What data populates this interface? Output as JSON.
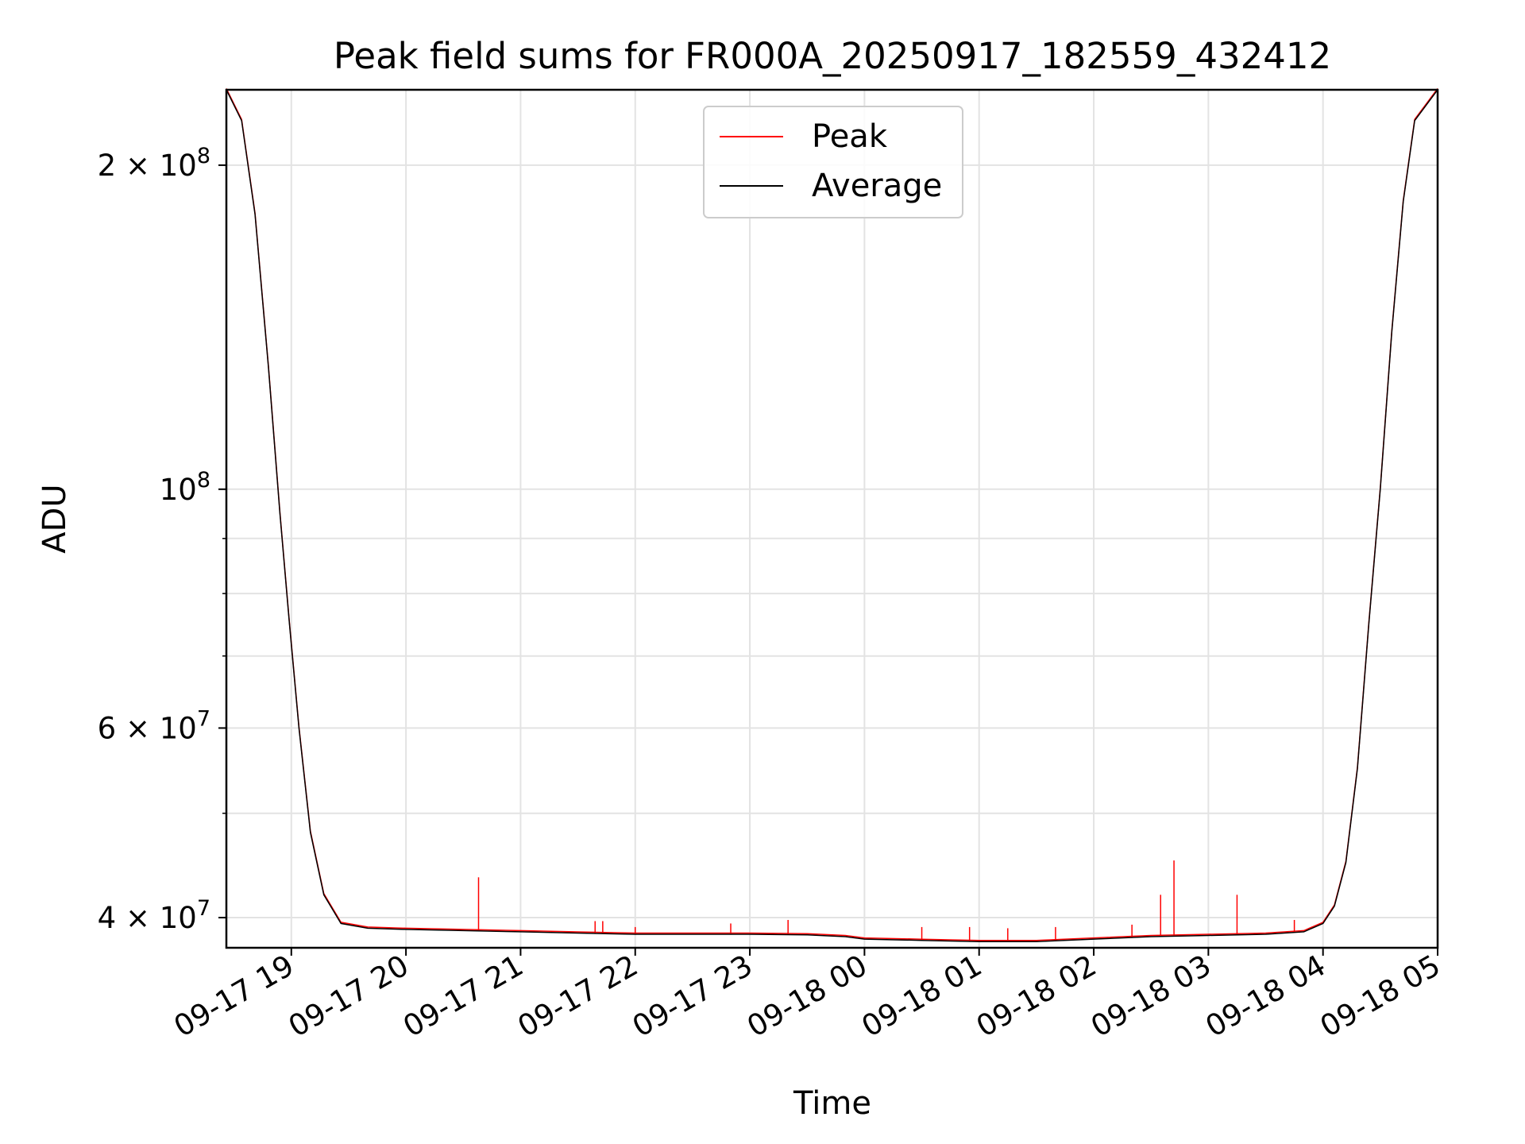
{
  "chart_data": {
    "type": "line",
    "title": "Peak field sums for FR000A_20250917_182559_432412",
    "xlabel": "Time",
    "ylabel": "ADU",
    "y_scale": "log",
    "grid": true,
    "legend_position": "upper center",
    "xlim": [
      "2025-09-17 18:26",
      "2025-09-18 05:00"
    ],
    "ylim": [
      37500000,
      235000000
    ],
    "x_tick_labels": [
      "09-17 19",
      "09-17 20",
      "09-17 21",
      "09-17 22",
      "09-17 23",
      "09-18 00",
      "09-18 01",
      "09-18 02",
      "09-18 03",
      "09-18 04",
      "09-18 05"
    ],
    "y_major_tick_labels": [
      {
        "value": 40000000,
        "mantissa": "4",
        "exponent": "7"
      },
      {
        "value": 60000000,
        "mantissa": "6",
        "exponent": "7"
      },
      {
        "value": 100000000,
        "mantissa": "",
        "exponent": "8"
      },
      {
        "value": 200000000,
        "mantissa": "2",
        "exponent": "8"
      }
    ],
    "y_minor_ticks": [
      50000000,
      70000000,
      80000000,
      90000000
    ],
    "series": [
      {
        "name": "Peak",
        "color": "#ff0000"
      },
      {
        "name": "Average",
        "color": "#000000"
      }
    ],
    "average_curve": [
      [
        "2025-09-17 18:26",
        235000000
      ],
      [
        "2025-09-17 18:34",
        220000000
      ],
      [
        "2025-09-17 18:41",
        180000000
      ],
      [
        "2025-09-17 18:48",
        130000000
      ],
      [
        "2025-09-17 18:54",
        95000000
      ],
      [
        "2025-09-17 18:59",
        75000000
      ],
      [
        "2025-09-17 19:04",
        60000000
      ],
      [
        "2025-09-17 19:10",
        48000000
      ],
      [
        "2025-09-17 19:17",
        42000000
      ],
      [
        "2025-09-17 19:26",
        39500000
      ],
      [
        "2025-09-17 19:40",
        39100000
      ],
      [
        "2025-09-17 20:00",
        39000000
      ],
      [
        "2025-09-17 20:30",
        38900000
      ],
      [
        "2025-09-17 21:00",
        38800000
      ],
      [
        "2025-09-17 21:30",
        38700000
      ],
      [
        "2025-09-17 22:00",
        38600000
      ],
      [
        "2025-09-17 22:30",
        38600000
      ],
      [
        "2025-09-17 23:00",
        38600000
      ],
      [
        "2025-09-17 23:30",
        38550000
      ],
      [
        "2025-09-17 23:50",
        38400000
      ],
      [
        "2025-09-18 00:00",
        38200000
      ],
      [
        "2025-09-18 00:30",
        38100000
      ],
      [
        "2025-09-18 01:00",
        38000000
      ],
      [
        "2025-09-18 01:30",
        38000000
      ],
      [
        "2025-09-18 02:00",
        38200000
      ],
      [
        "2025-09-18 02:30",
        38400000
      ],
      [
        "2025-09-18 03:00",
        38500000
      ],
      [
        "2025-09-18 03:30",
        38600000
      ],
      [
        "2025-09-18 03:50",
        38800000
      ],
      [
        "2025-09-18 04:00",
        39500000
      ],
      [
        "2025-09-18 04:06",
        41000000
      ],
      [
        "2025-09-18 04:12",
        45000000
      ],
      [
        "2025-09-18 04:18",
        55000000
      ],
      [
        "2025-09-18 04:24",
        75000000
      ],
      [
        "2025-09-18 04:30",
        100000000
      ],
      [
        "2025-09-18 04:36",
        140000000
      ],
      [
        "2025-09-18 04:42",
        185000000
      ],
      [
        "2025-09-18 04:48",
        220000000
      ],
      [
        "2025-09-18 05:00",
        235000000
      ]
    ],
    "peak_spikes": [
      [
        "2025-09-17 20:38",
        43600000
      ],
      [
        "2025-09-17 21:39",
        39700000
      ],
      [
        "2025-09-17 21:43",
        39700000
      ],
      [
        "2025-09-17 22:00",
        39200000
      ],
      [
        "2025-09-17 22:50",
        39500000
      ],
      [
        "2025-09-17 23:20",
        39800000
      ],
      [
        "2025-09-18 00:30",
        39200000
      ],
      [
        "2025-09-18 00:55",
        39200000
      ],
      [
        "2025-09-18 01:15",
        39100000
      ],
      [
        "2025-09-18 01:40",
        39200000
      ],
      [
        "2025-09-18 02:20",
        39400000
      ],
      [
        "2025-09-18 02:35",
        42000000
      ],
      [
        "2025-09-18 02:42",
        45200000
      ],
      [
        "2025-09-18 03:15",
        42000000
      ],
      [
        "2025-09-18 03:45",
        39800000
      ]
    ]
  }
}
